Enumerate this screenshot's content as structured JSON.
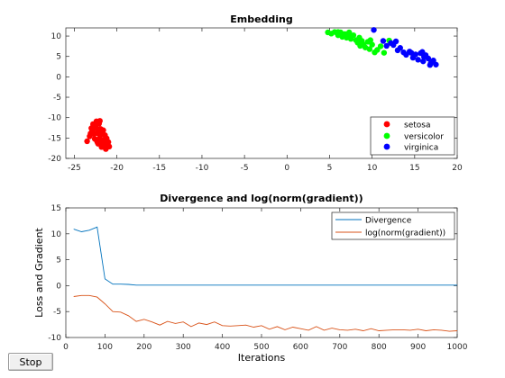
{
  "chart_data": [
    {
      "type": "scatter",
      "title": "Embedding",
      "xlim": [
        -26,
        20
      ],
      "ylim": [
        -20,
        12
      ],
      "xticks": [
        -25,
        -20,
        -15,
        -10,
        -5,
        0,
        5,
        10,
        15,
        20
      ],
      "yticks": [
        10,
        5,
        0,
        -5,
        -10,
        -15,
        -20
      ],
      "grid": false,
      "legend_position": "bottom-right",
      "series": [
        {
          "name": "setosa",
          "color": "#ff0000",
          "points": [
            [
              -23.5,
              -15.8
            ],
            [
              -23.2,
              -14.6
            ],
            [
              -23.0,
              -12.6
            ],
            [
              -22.9,
              -13.3
            ],
            [
              -22.8,
              -11.6
            ],
            [
              -22.7,
              -14.0
            ],
            [
              -22.6,
              -15.2
            ],
            [
              -22.5,
              -12.2
            ],
            [
              -22.4,
              -10.9
            ],
            [
              -22.3,
              -13.8
            ],
            [
              -22.2,
              -16.4
            ],
            [
              -22.1,
              -11.5
            ],
            [
              -22.0,
              -14.9
            ],
            [
              -21.9,
              -12.8
            ],
            [
              -21.8,
              -17.2
            ],
            [
              -21.7,
              -15.6
            ],
            [
              -21.6,
              -13.1
            ],
            [
              -21.5,
              -16.8
            ],
            [
              -21.4,
              -14.3
            ],
            [
              -21.3,
              -17.7
            ],
            [
              -21.2,
              -15.1
            ],
            [
              -21.0,
              -16.0
            ],
            [
              -20.9,
              -17.1
            ],
            [
              -22.6,
              -11.9
            ],
            [
              -22.2,
              -12.9
            ],
            [
              -21.8,
              -14.0
            ],
            [
              -22.4,
              -15.5
            ],
            [
              -21.6,
              -16.3
            ],
            [
              -23.1,
              -13.9
            ],
            [
              -21.2,
              -16.9
            ],
            [
              -22.0,
              -10.8
            ],
            [
              -22.8,
              -12.9
            ],
            [
              -21.4,
              -15.3
            ],
            [
              -22.3,
              -16.0
            ],
            [
              -21.9,
              -13.7
            ]
          ]
        },
        {
          "name": "versicolor",
          "color": "#00ff00",
          "points": [
            [
              4.8,
              10.9
            ],
            [
              5.2,
              10.6
            ],
            [
              5.6,
              11.0
            ],
            [
              6.0,
              10.2
            ],
            [
              6.3,
              10.9
            ],
            [
              6.5,
              9.8
            ],
            [
              6.8,
              10.5
            ],
            [
              7.0,
              9.6
            ],
            [
              7.2,
              10.0
            ],
            [
              7.5,
              9.3
            ],
            [
              7.8,
              10.2
            ],
            [
              8.1,
              9.0
            ],
            [
              8.3,
              8.4
            ],
            [
              8.5,
              9.6
            ],
            [
              8.8,
              8.8
            ],
            [
              9.0,
              7.9
            ],
            [
              9.2,
              7.2
            ],
            [
              9.5,
              8.6
            ],
            [
              9.7,
              6.8
            ],
            [
              10.0,
              7.9
            ],
            [
              10.3,
              6.0
            ],
            [
              10.6,
              6.6
            ],
            [
              11.0,
              7.5
            ],
            [
              11.4,
              5.9
            ],
            [
              12.0,
              8.9
            ],
            [
              6.0,
              11.0
            ],
            [
              7.3,
              10.9
            ],
            [
              8.6,
              7.6
            ],
            [
              9.8,
              9.0
            ],
            [
              5.9,
              10.7
            ]
          ]
        },
        {
          "name": "virginica",
          "color": "#0000ff",
          "points": [
            [
              10.2,
              11.5
            ],
            [
              11.3,
              8.8
            ],
            [
              11.7,
              7.6
            ],
            [
              12.2,
              8.3
            ],
            [
              12.5,
              7.8
            ],
            [
              12.8,
              8.7
            ],
            [
              13.0,
              6.5
            ],
            [
              13.3,
              7.1
            ],
            [
              13.7,
              6.0
            ],
            [
              14.0,
              5.4
            ],
            [
              14.4,
              6.2
            ],
            [
              14.8,
              4.7
            ],
            [
              15.1,
              5.5
            ],
            [
              15.4,
              4.2
            ],
            [
              15.7,
              5.8
            ],
            [
              16.0,
              3.8
            ],
            [
              16.3,
              5.3
            ],
            [
              16.6,
              4.5
            ],
            [
              16.9,
              3.4
            ],
            [
              17.2,
              4.0
            ],
            [
              17.5,
              3.0
            ],
            [
              16.1,
              4.9
            ],
            [
              15.9,
              6.1
            ],
            [
              14.6,
              5.9
            ],
            [
              16.8,
              2.9
            ]
          ]
        }
      ]
    },
    {
      "type": "line",
      "title": "Divergence and log(norm(gradient))",
      "xlabel": "Iterations",
      "ylabel": "Loss and Gradient",
      "xlim": [
        0,
        1000
      ],
      "ylim": [
        -10,
        15
      ],
      "xticks": [
        0,
        100,
        200,
        300,
        400,
        500,
        600,
        700,
        800,
        900,
        1000
      ],
      "yticks": [
        15,
        10,
        5,
        0,
        -5,
        -10
      ],
      "grid": false,
      "legend_position": "top-right",
      "x": [
        20,
        40,
        60,
        80,
        100,
        120,
        140,
        160,
        180,
        200,
        220,
        240,
        260,
        280,
        300,
        320,
        340,
        360,
        380,
        400,
        420,
        440,
        460,
        480,
        500,
        520,
        540,
        560,
        580,
        600,
        620,
        640,
        660,
        680,
        700,
        720,
        740,
        760,
        780,
        800,
        820,
        840,
        860,
        880,
        900,
        920,
        940,
        960,
        980,
        1000
      ],
      "series": [
        {
          "name": "Divergence",
          "color": "#0072bd",
          "values": [
            10.9,
            10.4,
            10.7,
            11.3,
            1.3,
            0.3,
            0.3,
            0.25,
            0.1,
            0.1,
            0.1,
            0.1,
            0.1,
            0.1,
            0.1,
            0.1,
            0.1,
            0.1,
            0.1,
            0.1,
            0.1,
            0.1,
            0.1,
            0.1,
            0.1,
            0.1,
            0.1,
            0.1,
            0.1,
            0.1,
            0.1,
            0.1,
            0.1,
            0.1,
            0.1,
            0.1,
            0.1,
            0.1,
            0.1,
            0.1,
            0.1,
            0.1,
            0.1,
            0.1,
            0.1,
            0.1,
            0.1,
            0.1,
            0.1,
            0.1
          ]
        },
        {
          "name": "log(norm(gradient))",
          "color": "#d95319",
          "values": [
            -2.1,
            -1.9,
            -1.9,
            -2.2,
            -3.5,
            -5.0,
            -5.1,
            -5.8,
            -6.9,
            -6.5,
            -7.0,
            -7.6,
            -6.9,
            -7.3,
            -7.0,
            -7.9,
            -7.2,
            -7.5,
            -7.0,
            -7.7,
            -7.8,
            -7.7,
            -7.6,
            -8.0,
            -7.7,
            -8.4,
            -7.9,
            -8.5,
            -8.0,
            -8.3,
            -8.6,
            -7.9,
            -8.6,
            -8.2,
            -8.5,
            -8.6,
            -8.4,
            -8.7,
            -8.3,
            -8.7,
            -8.6,
            -8.5,
            -8.5,
            -8.6,
            -8.4,
            -8.7,
            -8.5,
            -8.6,
            -8.8,
            -8.7
          ]
        }
      ]
    }
  ],
  "stop_button": {
    "label": "Stop"
  }
}
